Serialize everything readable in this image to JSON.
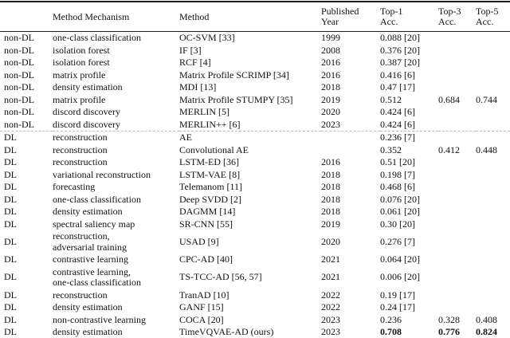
{
  "table": {
    "colors": {
      "text": "#111111",
      "rule": "#1c1c1c",
      "section_divider": "#bdbdbd",
      "background": "#ffffff"
    },
    "columns": [
      {
        "key": "category",
        "label": ""
      },
      {
        "key": "mechanism",
        "label": "Method Mechanism"
      },
      {
        "key": "method",
        "label": "Method"
      },
      {
        "key": "year",
        "label": "Published\nYear"
      },
      {
        "key": "top1",
        "label": "Top-1\nAcc."
      },
      {
        "key": "top3",
        "label": "Top-3\nAcc."
      },
      {
        "key": "top5",
        "label": "Top-5\nAcc."
      }
    ],
    "rows": [
      {
        "category": "non-DL",
        "mechanism": "one-class classification",
        "method": "OC-SVM [33]",
        "year": "1999",
        "top1": "0.088 [20]",
        "top3": "",
        "top5": ""
      },
      {
        "category": "non-DL",
        "mechanism": "isolation forest",
        "method": "IF [3]",
        "year": "2008",
        "top1": "0.376 [20]",
        "top3": "",
        "top5": ""
      },
      {
        "category": "non-DL",
        "mechanism": "isolation forest",
        "method": "RCF [4]",
        "year": "2016",
        "top1": "0.387 [20]",
        "top3": "",
        "top5": ""
      },
      {
        "category": "non-DL",
        "mechanism": "matrix profile",
        "method": "Matrix Profile SCRIMP [34]",
        "year": "2016",
        "top1": "0.416 [6]",
        "top3": "",
        "top5": ""
      },
      {
        "category": "non-DL",
        "mechanism": "density estimation",
        "method": "MDI [13]",
        "year": "2018",
        "top1": "0.47 [17]",
        "top3": "",
        "top5": ""
      },
      {
        "category": "non-DL",
        "mechanism": "matrix profile",
        "method": "Matrix Profile STUMPY [35]",
        "year": "2019",
        "top1": "0.512",
        "top3": "0.684",
        "top5": "0.744"
      },
      {
        "category": "non-DL",
        "mechanism": "discord discovery",
        "method": "MERLIN [5]",
        "year": "2020",
        "top1": "0.424 [6]",
        "top3": "",
        "top5": ""
      },
      {
        "category": "non-DL",
        "mechanism": "discord discovery",
        "method": "MERLIN++ [6]",
        "year": "2023",
        "top1": "0.424 [6]",
        "top3": "",
        "top5": ""
      },
      {
        "category": "DL",
        "mechanism": "reconstruction",
        "method": "AE",
        "year": "",
        "top1": "0.236 [7]",
        "top3": "",
        "top5": "",
        "divider_before": true
      },
      {
        "category": "DL",
        "mechanism": "reconstruction",
        "method": "Convolutional AE",
        "year": "",
        "top1": "0.352",
        "top3": "0.412",
        "top5": "0.448"
      },
      {
        "category": "DL",
        "mechanism": "reconstruction",
        "method": "LSTM-ED [36]",
        "year": "2016",
        "top1": "0.51 [20]",
        "top3": "",
        "top5": ""
      },
      {
        "category": "DL",
        "mechanism": "variational reconstruction",
        "method": "LSTM-VAE [8]",
        "year": "2018",
        "top1": "0.198 [7]",
        "top3": "",
        "top5": ""
      },
      {
        "category": "DL",
        "mechanism": "forecasting",
        "method": "Telemanom [11]",
        "year": "2018",
        "top1": "0.468 [6]",
        "top3": "",
        "top5": ""
      },
      {
        "category": "DL",
        "mechanism": "one-class classification",
        "method": "Deep SVDD [2]",
        "year": "2018",
        "top1": "0.076 [20]",
        "top3": "",
        "top5": ""
      },
      {
        "category": "DL",
        "mechanism": "density estimation",
        "method": "DAGMM [14]",
        "year": "2018",
        "top1": "0.061 [20]",
        "top3": "",
        "top5": ""
      },
      {
        "category": "DL",
        "mechanism": "spectral saliency map",
        "method": "SR-CNN [55]",
        "year": "2019",
        "top1": "0.30 [20]",
        "top3": "",
        "top5": ""
      },
      {
        "category": "DL",
        "mechanism": "reconstruction,\nadversarial training",
        "method": "USAD [9]",
        "year": "2020",
        "top1": "0.276 [7]",
        "top3": "",
        "top5": ""
      },
      {
        "category": "DL",
        "mechanism": "contrastive learning",
        "method": "CPC-AD [40]",
        "year": "2021",
        "top1": "0.064 [20]",
        "top3": "",
        "top5": ""
      },
      {
        "category": "DL",
        "mechanism": "contrastive learning,\none-class classification",
        "method": "TS-TCC-AD [56, 57]",
        "year": "2021",
        "top1": "0.006 [20]",
        "top3": "",
        "top5": ""
      },
      {
        "category": "DL",
        "mechanism": "reconstruction",
        "method": "TranAD [10]",
        "year": "2022",
        "top1": "0.19 [17]",
        "top3": "",
        "top5": ""
      },
      {
        "category": "DL",
        "mechanism": "density estimation",
        "method": "GANF [15]",
        "year": "2022",
        "top1": "0.24 [17]",
        "top3": "",
        "top5": ""
      },
      {
        "category": "DL",
        "mechanism": "non-contrastive learning",
        "method": "COCA [20]",
        "year": "2023",
        "top1": "0.236",
        "top3": "0.328",
        "top5": "0.408"
      },
      {
        "category": "DL",
        "mechanism": "density estimation",
        "method": "TimeVQVAE-AD (ours)",
        "year": "2023",
        "top1": "0.708",
        "top3": "0.776",
        "top5": "0.824",
        "bold_acc": true
      }
    ]
  }
}
